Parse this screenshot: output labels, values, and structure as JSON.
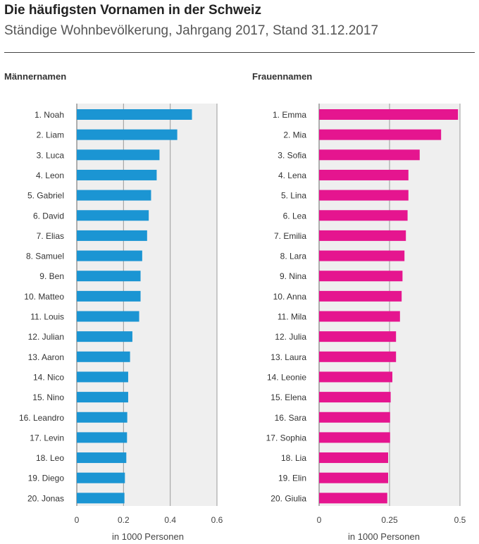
{
  "title": "Die häufigsten Vornamen in der Schweiz",
  "subtitle": "Ständige Wohnbevölkerung, Jahrgang 2017, Stand 31.12.2017",
  "chart_data": [
    {
      "type": "bar",
      "orientation": "horizontal",
      "title": "Männernamen",
      "xlabel": "in 1000 Personen",
      "xlim": [
        0,
        0.6
      ],
      "xticks": [
        0,
        0.2,
        0.4,
        0.6
      ],
      "xtick_labels": [
        "0",
        "0.2",
        "0.4",
        "0.6"
      ],
      "color": "#1b95d3",
      "categories": [
        "1. Noah",
        "2. Liam",
        "3. Luca",
        "4. Leon",
        "5. Gabriel",
        "6. David",
        "7. Elias",
        "8. Samuel",
        "9. Ben",
        "10. Matteo",
        "11. Louis",
        "12. Julian",
        "13. Aaron",
        "14. Nico",
        "15. Nino",
        "16. Leandro",
        "17. Levin",
        "18. Leo",
        "19. Diego",
        "20. Jonas"
      ],
      "values": [
        0.493,
        0.43,
        0.354,
        0.342,
        0.318,
        0.308,
        0.301,
        0.28,
        0.273,
        0.273,
        0.267,
        0.238,
        0.228,
        0.22,
        0.22,
        0.216,
        0.215,
        0.212,
        0.206,
        0.204
      ]
    },
    {
      "type": "bar",
      "orientation": "horizontal",
      "title": "Frauennamen",
      "xlabel": "in 1000 Personen",
      "xlim": [
        0,
        0.5
      ],
      "xticks": [
        0,
        0.25,
        0.5
      ],
      "xtick_labels": [
        "0",
        "0.25",
        "0.5"
      ],
      "color": "#e5158f",
      "categories": [
        "1. Emma",
        "2. Mia",
        "3. Sofia",
        "4. Lena",
        "5. Lina",
        "6. Lea",
        "7. Emilia",
        "8. Lara",
        "9. Nina",
        "10. Anna",
        "11. Mila",
        "12. Julia",
        "13. Laura",
        "14. Leonie",
        "15. Elena",
        "16. Sara",
        "17. Sophia",
        "18. Lia",
        "19. Elin",
        "20. Giulia"
      ],
      "values": [
        0.493,
        0.433,
        0.357,
        0.317,
        0.317,
        0.314,
        0.308,
        0.303,
        0.296,
        0.293,
        0.287,
        0.273,
        0.273,
        0.26,
        0.254,
        0.252,
        0.252,
        0.245,
        0.245,
        0.242
      ]
    }
  ]
}
